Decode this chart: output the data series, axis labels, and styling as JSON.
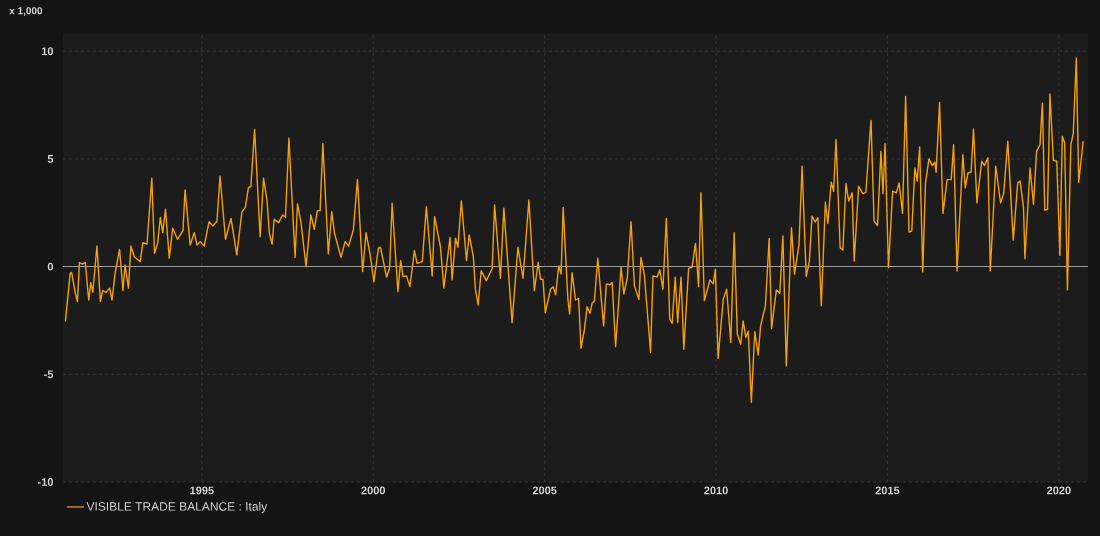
{
  "chart_data": {
    "type": "line",
    "ylabel": "x 1,000",
    "x": [
      1991.02,
      1991.16,
      1991.2,
      1991.31,
      1991.37,
      1991.43,
      1991.5,
      1991.6,
      1991.7,
      1991.76,
      1991.82,
      1991.94,
      1992.04,
      1992.11,
      1992.2,
      1992.31,
      1992.38,
      1992.47,
      1992.6,
      1992.7,
      1992.76,
      1992.86,
      1992.93,
      1993.03,
      1993.2,
      1993.28,
      1993.4,
      1993.54,
      1993.62,
      1993.71,
      1993.79,
      1993.86,
      1993.94,
      1994.05,
      1994.15,
      1994.29,
      1994.45,
      1994.51,
      1994.66,
      1994.78,
      1994.86,
      1994.95,
      1995.07,
      1995.21,
      1995.32,
      1995.44,
      1995.53,
      1995.69,
      1995.85,
      1996.02,
      1996.17,
      1996.27,
      1996.36,
      1996.43,
      1996.54,
      1996.7,
      1996.8,
      1996.9,
      1996.97,
      1997.05,
      1997.11,
      1997.24,
      1997.36,
      1997.44,
      1997.54,
      1997.72,
      1997.79,
      1997.89,
      1998.04,
      1998.18,
      1998.28,
      1998.37,
      1998.45,
      1998.53,
      1998.69,
      1998.79,
      1998.87,
      1999.06,
      1999.18,
      1999.28,
      1999.42,
      1999.54,
      1999.69,
      1999.79,
      1999.91,
      2000.02,
      2000.15,
      2000.21,
      2000.39,
      2000.48,
      2000.55,
      2000.72,
      2000.8,
      2000.87,
      2000.97,
      2001.07,
      2001.2,
      2001.28,
      2001.43,
      2001.55,
      2001.72,
      2001.79,
      2001.96,
      2002.06,
      2002.24,
      2002.3,
      2002.4,
      2002.47,
      2002.57,
      2002.72,
      2002.8,
      2002.92,
      2002.98,
      2003.06,
      2003.15,
      2003.3,
      2003.47,
      2003.54,
      2003.71,
      2003.81,
      2004.05,
      2004.22,
      2004.3,
      2004.37,
      2004.54,
      2004.7,
      2004.81,
      2004.88,
      2004.95,
      2005.02,
      2005.17,
      2005.25,
      2005.32,
      2005.41,
      2005.48,
      2005.54,
      2005.68,
      2005.73,
      2005.8,
      2005.9,
      2005.99,
      2006.06,
      2006.16,
      2006.24,
      2006.32,
      2006.39,
      2006.45,
      2006.55,
      2006.72,
      2006.8,
      2006.9,
      2006.97,
      2007.07,
      2007.23,
      2007.31,
      2007.41,
      2007.52,
      2007.62,
      2007.75,
      2007.81,
      2007.91,
      2008.09,
      2008.16,
      2008.28,
      2008.36,
      2008.45,
      2008.55,
      2008.65,
      2008.72,
      2008.81,
      2008.88,
      2008.98,
      2009.06,
      2009.2,
      2009.3,
      2009.4,
      2009.49,
      2009.56,
      2009.66,
      2009.82,
      2009.92,
      2009.98,
      2010.06,
      2010.21,
      2010.31,
      2010.43,
      2010.53,
      2010.62,
      2010.72,
      2010.79,
      2010.87,
      2010.94,
      2011.03,
      2011.13,
      2011.23,
      2011.3,
      2011.44,
      2011.55,
      2011.62,
      2011.76,
      2011.86,
      2011.95,
      2012.05,
      2012.2,
      2012.29,
      2012.42,
      2012.51,
      2012.63,
      2012.72,
      2012.8,
      2012.89,
      2012.97,
      2013.07,
      2013.19,
      2013.26,
      2013.36,
      2013.43,
      2013.5,
      2013.62,
      2013.7,
      2013.79,
      2013.87,
      2013.97,
      2014.03,
      2014.16,
      2014.28,
      2014.37,
      2014.52,
      2014.61,
      2014.71,
      2014.81,
      2014.87,
      2014.93,
      2015.03,
      2015.15,
      2015.26,
      2015.34,
      2015.44,
      2015.53,
      2015.63,
      2015.71,
      2015.8,
      2015.87,
      2015.94,
      2016.03,
      2016.11,
      2016.21,
      2016.31,
      2016.38,
      2016.42,
      2016.52,
      2016.62,
      2016.74,
      2016.86,
      2016.93,
      2017.03,
      2017.2,
      2017.27,
      2017.35,
      2017.44,
      2017.51,
      2017.61,
      2017.75,
      2017.83,
      2017.93,
      2018.0,
      2018.16,
      2018.3,
      2018.39,
      2018.51,
      2018.67,
      2018.8,
      2018.87,
      2018.97,
      2019.01,
      2019.16,
      2019.26,
      2019.35,
      2019.45,
      2019.52,
      2019.59,
      2019.67,
      2019.74,
      2019.84,
      2019.94,
      2020.03,
      2020.1,
      2020.17,
      2020.25,
      2020.35,
      2020.42,
      2020.51,
      2020.58,
      2020.71
    ],
    "series": [
      {
        "name": "VISIBLE TRADE BALANCE : Italy",
        "color": "#f5a00a",
        "values": [
          -2.55,
          -0.3,
          -0.27,
          -1.24,
          -1.62,
          0.19,
          0.12,
          0.19,
          -1.55,
          -0.74,
          -1.2,
          0.96,
          -1.62,
          -1.11,
          -1.2,
          -1.0,
          -1.55,
          -0.3,
          0.8,
          -1.11,
          0.08,
          -1.0,
          0.96,
          0.46,
          0.23,
          1.11,
          1.05,
          4.1,
          0.62,
          1.08,
          2.29,
          1.58,
          2.66,
          0.39,
          1.78,
          1.27,
          1.67,
          3.56,
          1.0,
          1.58,
          1.0,
          1.16,
          0.96,
          2.09,
          1.89,
          2.09,
          4.21,
          1.27,
          2.24,
          0.54,
          2.55,
          2.75,
          3.68,
          3.71,
          6.37,
          1.39,
          4.1,
          3.09,
          1.55,
          1.05,
          2.2,
          2.04,
          2.4,
          2.29,
          5.96,
          0.43,
          2.91,
          2.09,
          0.0,
          2.4,
          1.73,
          2.6,
          2.6,
          5.72,
          0.59,
          2.55,
          1.55,
          0.43,
          1.16,
          0.96,
          1.7,
          4.05,
          -0.23,
          1.58,
          0.54,
          -0.7,
          0.85,
          0.9,
          -0.49,
          -0.03,
          2.94,
          -1.16,
          0.28,
          -0.46,
          -0.43,
          -0.93,
          0.74,
          0.15,
          0.23,
          2.78,
          -0.43,
          2.32,
          0.93,
          -1.0,
          1.36,
          -0.62,
          1.32,
          0.9,
          3.06,
          0.28,
          1.47,
          0.46,
          -1.05,
          -1.78,
          -0.19,
          -0.65,
          -0.08,
          2.86,
          -0.54,
          2.71,
          -2.6,
          0.9,
          0.12,
          -0.54,
          3.09,
          -1.11,
          0.19,
          -0.59,
          -0.59,
          -2.13,
          -1.05,
          -0.93,
          -1.31,
          0.03,
          -0.34,
          2.75,
          -1.55,
          -2.2,
          -0.28,
          -1.55,
          -1.47,
          -3.79,
          -2.94,
          -1.86,
          -2.17,
          -1.67,
          -1.62,
          0.39,
          -2.75,
          -0.8,
          -0.85,
          -0.74,
          -3.71,
          -0.03,
          -1.27,
          -0.54,
          2.09,
          -0.9,
          -1.52,
          0.43,
          -0.39,
          -3.99,
          -0.43,
          -0.49,
          -0.15,
          -1.05,
          2.24,
          -2.44,
          -2.63,
          -0.49,
          -2.6,
          -0.49,
          -3.84,
          -0.08,
          -0.03,
          1.08,
          -0.93,
          3.43,
          -1.58,
          -0.62,
          -0.8,
          -0.12,
          -4.26,
          -1.51,
          -1.05,
          -3.52,
          1.57,
          -3.13,
          -3.6,
          -2.52,
          -3.29,
          -3.0,
          -6.3,
          -3.02,
          -4.1,
          -2.75,
          -1.82,
          1.3,
          -2.87,
          -1.08,
          -1.24,
          1.42,
          -4.6,
          1.81,
          -0.35,
          1.03,
          4.66,
          -0.46,
          0.22,
          2.35,
          2.07,
          2.27,
          -1.82,
          2.99,
          2.0,
          3.92,
          3.5,
          5.9,
          0.88,
          0.77,
          3.86,
          3.04,
          3.43,
          0.26,
          3.73,
          3.39,
          3.45,
          6.79,
          2.11,
          1.91,
          5.35,
          3.39,
          5.71,
          -0.05,
          3.5,
          3.42,
          3.89,
          2.47,
          7.9,
          1.6,
          1.65,
          4.58,
          3.97,
          5.56,
          -0.25,
          3.89,
          5.0,
          4.69,
          4.85,
          4.38,
          7.62,
          2.47,
          4.04,
          4.04,
          5.66,
          -0.2,
          5.2,
          3.66,
          4.35,
          4.38,
          6.39,
          2.96,
          4.89,
          4.69,
          5.05,
          -0.2,
          4.66,
          2.96,
          3.39,
          5.82,
          1.23,
          3.89,
          3.97,
          2.73,
          0.37,
          4.58,
          2.89,
          5.35,
          5.66,
          7.59,
          2.62,
          2.65,
          8.02,
          4.94,
          4.89,
          0.52,
          6.05,
          5.74,
          -1.08,
          5.66,
          6.17,
          9.68,
          3.92,
          5.82
        ]
      }
    ],
    "xlim": [
      1990.95,
      2020.85
    ],
    "ylim": [
      -10,
      10.8
    ],
    "xticks": [
      1995,
      2000,
      2005,
      2010,
      2015,
      2020
    ],
    "yticks": [
      -10,
      -5,
      0,
      5,
      10
    ],
    "ref_lines": [
      {
        "axis": "y",
        "value": 0,
        "color": "#9a9a9a"
      }
    ],
    "grid": true,
    "legend": "bottom left",
    "line_style": "solid"
  }
}
